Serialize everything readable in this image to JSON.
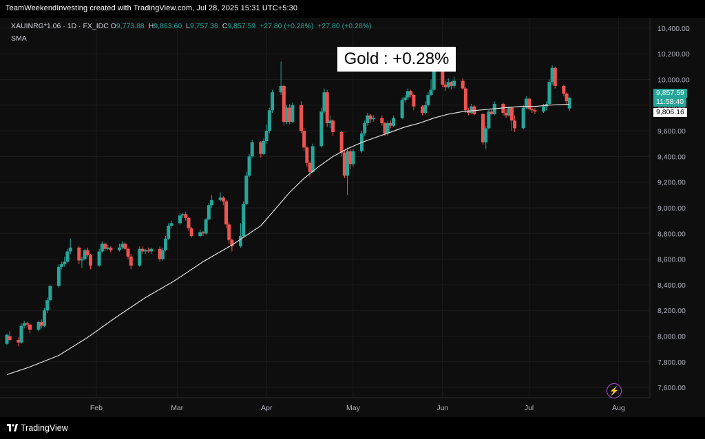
{
  "header": {
    "credit": "TeamWeekendInvesting created with TradingView.com, Jul 28, 2025 15:31 UTC+5:30"
  },
  "legend": {
    "symbol": "XAUINRG*1.06 · 1D · FX_IDC",
    "open_label": "O",
    "open": "9,773.88",
    "high_label": "H",
    "high": "9,863.60",
    "low_label": "L",
    "low": "9,757.38",
    "close_label": "C",
    "close": "9,857.59",
    "change": "+27.80 (+0.28%)",
    "change2": "+27.80 (+0.28%)",
    "indicator": "SMA"
  },
  "annotation": "Gold : +0.28%",
  "price_tags": {
    "last_price": "9,857.59",
    "countdown": "11:58:40",
    "sma_value": "9,806.16"
  },
  "colors": {
    "up": "#26a69a",
    "down": "#ef5350",
    "sma": "#e0e0e0",
    "background": "#0e0e0e",
    "grid": "#1c1c1c"
  },
  "icons": {
    "alert": "lightning-bolt-icon",
    "brand": "tradingview-logo-icon"
  },
  "footer": {
    "brand": "TradingView"
  },
  "chart_data": {
    "type": "candlestick",
    "x_tick_labels": [
      "Feb",
      "Mar",
      "Apr",
      "May",
      "Jun",
      "Jul",
      "Aug"
    ],
    "x_tick_days": [
      33,
      61,
      92,
      122,
      153,
      183,
      214
    ],
    "y_tick_labels": [
      "10,400.00",
      "10,200.00",
      "10,000.00",
      "9,800.00",
      "9,600.00",
      "9,400.00",
      "9,200.00",
      "9,000.00",
      "8,800.00",
      "8,600.00",
      "8,400.00",
      "8,200.00",
      "8,000.00",
      "7,800.00",
      "7,600.00"
    ],
    "ylim": [
      7520,
      10480
    ],
    "xlim_days": [
      2,
      222
    ],
    "grid": true,
    "series": [
      {
        "type": "candlestick",
        "points": [
          [
            2,
            7940,
            8020,
            7930,
            8010
          ],
          [
            3,
            8000,
            8040,
            7960,
            7970
          ],
          [
            6,
            7970,
            7990,
            7920,
            7950
          ],
          [
            7,
            7950,
            8100,
            7940,
            8080
          ],
          [
            8,
            8080,
            8120,
            8060,
            8100
          ],
          [
            9,
            8100,
            8110,
            8070,
            8090
          ],
          [
            10,
            8090,
            8100,
            8020,
            8050
          ],
          [
            13,
            8050,
            8120,
            8040,
            8110
          ],
          [
            14,
            8110,
            8130,
            8060,
            8080
          ],
          [
            15,
            8080,
            8220,
            8070,
            8200
          ],
          [
            16,
            8200,
            8300,
            8180,
            8280
          ],
          [
            17,
            8280,
            8400,
            8270,
            8390
          ],
          [
            20,
            8390,
            8560,
            8380,
            8540
          ],
          [
            21,
            8540,
            8580,
            8520,
            8560
          ],
          [
            22,
            8560,
            8620,
            8540,
            8580
          ],
          [
            23,
            8580,
            8680,
            8570,
            8660
          ],
          [
            24,
            8660,
            8760,
            8640,
            8690
          ],
          [
            27,
            8690,
            8700,
            8560,
            8590
          ],
          [
            28,
            8590,
            8620,
            8530,
            8600
          ],
          [
            29,
            8600,
            8680,
            8590,
            8670
          ],
          [
            30,
            8670,
            8690,
            8620,
            8630
          ],
          [
            31,
            8630,
            8640,
            8520,
            8550
          ],
          [
            34,
            8550,
            8680,
            8540,
            8660
          ],
          [
            35,
            8660,
            8740,
            8650,
            8720
          ],
          [
            36,
            8720,
            8730,
            8660,
            8680
          ],
          [
            37,
            8680,
            8710,
            8670,
            8690
          ],
          [
            38,
            8690,
            8700,
            8650,
            8670
          ],
          [
            41,
            8670,
            8720,
            8660,
            8690
          ],
          [
            42,
            8690,
            8740,
            8680,
            8720
          ],
          [
            43,
            8720,
            8730,
            8670,
            8680
          ],
          [
            44,
            8680,
            8690,
            8600,
            8620
          ],
          [
            45,
            8620,
            8640,
            8520,
            8550
          ],
          [
            48,
            8550,
            8700,
            8540,
            8680
          ],
          [
            49,
            8680,
            8700,
            8640,
            8660
          ],
          [
            50,
            8660,
            8680,
            8640,
            8670
          ],
          [
            51,
            8670,
            8690,
            8650,
            8660
          ],
          [
            52,
            8660,
            8690,
            8640,
            8680
          ],
          [
            55,
            8680,
            8700,
            8580,
            8600
          ],
          [
            56,
            8600,
            8690,
            8590,
            8670
          ],
          [
            57,
            8670,
            8780,
            8660,
            8760
          ],
          [
            58,
            8760,
            8880,
            8750,
            8860
          ],
          [
            59,
            8860,
            8900,
            8840,
            8880
          ],
          [
            62,
            8880,
            8960,
            8870,
            8940
          ],
          [
            63,
            8940,
            8960,
            8920,
            8950
          ],
          [
            64,
            8950,
            8970,
            8900,
            8920
          ],
          [
            65,
            8920,
            8930,
            8820,
            8840
          ],
          [
            66,
            8840,
            8850,
            8770,
            8780
          ],
          [
            69,
            8780,
            8830,
            8770,
            8810
          ],
          [
            70,
            8810,
            8820,
            8780,
            8800
          ],
          [
            71,
            8800,
            8920,
            8790,
            8910
          ],
          [
            72,
            8910,
            9040,
            8900,
            9020
          ],
          [
            73,
            9020,
            9100,
            9000,
            9060
          ],
          [
            76,
            9060,
            9120,
            9050,
            9080
          ],
          [
            77,
            9080,
            9090,
            9020,
            9050
          ],
          [
            78,
            9050,
            9060,
            8840,
            8870
          ],
          [
            79,
            8870,
            8890,
            8720,
            8750
          ],
          [
            80,
            8750,
            8760,
            8660,
            8700
          ],
          [
            83,
            8700,
            8880,
            8690,
            8780
          ],
          [
            84,
            8780,
            9050,
            8770,
            9030
          ],
          [
            85,
            9030,
            9280,
            9020,
            9250
          ],
          [
            86,
            9250,
            9420,
            9240,
            9400
          ],
          [
            87,
            9400,
            9530,
            9390,
            9510
          ],
          [
            90,
            9510,
            9520,
            9390,
            9420
          ],
          [
            91,
            9420,
            9540,
            9410,
            9520
          ],
          [
            92,
            9520,
            9650,
            9500,
            9600
          ],
          [
            93,
            9600,
            9780,
            9580,
            9760
          ],
          [
            94,
            9760,
            9920,
            9740,
            9900
          ],
          [
            97,
            9900,
            10140,
            9880,
            9950
          ],
          [
            98,
            9950,
            9960,
            9640,
            9670
          ],
          [
            99,
            9670,
            9800,
            9650,
            9780
          ],
          [
            100,
            9780,
            9810,
            9650,
            9670
          ],
          [
            101,
            9670,
            9820,
            9660,
            9800
          ],
          [
            104,
            9800,
            9830,
            9580,
            9600
          ],
          [
            105,
            9600,
            9620,
            9440,
            9470
          ],
          [
            106,
            9470,
            9480,
            9320,
            9350
          ],
          [
            107,
            9350,
            9360,
            9240,
            9280
          ],
          [
            108,
            9280,
            9500,
            9270,
            9480
          ],
          [
            111,
            9480,
            9780,
            9470,
            9750
          ],
          [
            112,
            9750,
            9930,
            9740,
            9900
          ],
          [
            113,
            9900,
            9920,
            9630,
            9660
          ],
          [
            114,
            9660,
            9720,
            9620,
            9680
          ],
          [
            115,
            9680,
            9690,
            9560,
            9590
          ],
          [
            118,
            9590,
            9600,
            9400,
            9430
          ],
          [
            119,
            9430,
            9450,
            9230,
            9250
          ],
          [
            120,
            9250,
            9470,
            9100,
            9440
          ],
          [
            121,
            9440,
            9460,
            9300,
            9340
          ],
          [
            122,
            9340,
            9460,
            9320,
            9440
          ],
          [
            125,
            9440,
            9600,
            9430,
            9580
          ],
          [
            126,
            9580,
            9680,
            9560,
            9660
          ],
          [
            127,
            9660,
            9740,
            9640,
            9720
          ],
          [
            128,
            9720,
            9730,
            9660,
            9690
          ],
          [
            129,
            9690,
            9720,
            9670,
            9700
          ],
          [
            132,
            9700,
            9720,
            9640,
            9660
          ],
          [
            133,
            9660,
            9670,
            9560,
            9580
          ],
          [
            134,
            9580,
            9680,
            9560,
            9660
          ],
          [
            135,
            9660,
            9680,
            9620,
            9640
          ],
          [
            136,
            9640,
            9720,
            9630,
            9700
          ],
          [
            139,
            9700,
            9860,
            9690,
            9840
          ],
          [
            140,
            9840,
            9880,
            9820,
            9860
          ],
          [
            141,
            9860,
            9930,
            9840,
            9910
          ],
          [
            142,
            9910,
            9920,
            9860,
            9880
          ],
          [
            143,
            9880,
            9890,
            9760,
            9790
          ],
          [
            146,
            9790,
            9800,
            9720,
            9740
          ],
          [
            147,
            9740,
            9830,
            9730,
            9800
          ],
          [
            148,
            9800,
            9900,
            9790,
            9880
          ],
          [
            149,
            9880,
            10000,
            9870,
            9920
          ],
          [
            150,
            9920,
            10140,
            9910,
            10120
          ],
          [
            153,
            10120,
            10130,
            9940,
            9960
          ],
          [
            154,
            9960,
            9990,
            9910,
            9940
          ],
          [
            155,
            9940,
            10010,
            9930,
            9980
          ],
          [
            156,
            9980,
            9990,
            9920,
            9950
          ],
          [
            157,
            9950,
            10020,
            9930,
            9990
          ],
          [
            160,
            9990,
            10010,
            9920,
            9930
          ],
          [
            161,
            9930,
            9940,
            9740,
            9760
          ],
          [
            162,
            9760,
            9780,
            9720,
            9740
          ],
          [
            163,
            9740,
            9810,
            9730,
            9790
          ],
          [
            164,
            9790,
            9800,
            9720,
            9730
          ],
          [
            167,
            9730,
            9740,
            9490,
            9510
          ],
          [
            168,
            9510,
            9640,
            9460,
            9620
          ],
          [
            169,
            9620,
            9760,
            9610,
            9750
          ],
          [
            170,
            9750,
            9770,
            9720,
            9730
          ],
          [
            171,
            9730,
            9830,
            9720,
            9810
          ],
          [
            174,
            9810,
            9820,
            9720,
            9740
          ],
          [
            175,
            9740,
            9770,
            9700,
            9720
          ],
          [
            176,
            9720,
            9790,
            9710,
            9780
          ],
          [
            177,
            9780,
            9790,
            9600,
            9680
          ],
          [
            178,
            9680,
            9720,
            9590,
            9620
          ],
          [
            181,
            9620,
            9800,
            9610,
            9780
          ],
          [
            182,
            9780,
            9870,
            9770,
            9850
          ],
          [
            183,
            9850,
            9860,
            9760,
            9770
          ],
          [
            184,
            9770,
            9790,
            9740,
            9760
          ],
          [
            185,
            9760,
            9780,
            9730,
            9750
          ],
          [
            188,
            9750,
            9810,
            9740,
            9790
          ],
          [
            189,
            9790,
            9830,
            9760,
            9810
          ],
          [
            190,
            9810,
            10000,
            9800,
            9980
          ],
          [
            191,
            9980,
            10110,
            9960,
            10090
          ],
          [
            192,
            10090,
            10100,
            9930,
            9950
          ],
          [
            195,
            9950,
            9960,
            9870,
            9890
          ],
          [
            196,
            9890,
            9900,
            9800,
            9830
          ],
          [
            197,
            9774,
            9864,
            9757,
            9858
          ]
        ]
      },
      {
        "name": "SMA",
        "type": "line",
        "x": [
          2,
          10,
          20,
          30,
          40,
          50,
          60,
          70,
          80,
          90,
          95,
          100,
          105,
          110,
          115,
          120,
          125,
          130,
          135,
          140,
          145,
          150,
          155,
          160,
          165,
          170,
          175,
          180,
          185,
          190,
          195,
          197
        ],
        "y": [
          7700,
          7760,
          7850,
          7990,
          8150,
          8300,
          8430,
          8580,
          8710,
          8860,
          8990,
          9120,
          9230,
          9320,
          9400,
          9460,
          9510,
          9550,
          9590,
          9630,
          9660,
          9700,
          9730,
          9750,
          9760,
          9770,
          9780,
          9790,
          9790,
          9800,
          9806,
          9806
        ]
      }
    ]
  }
}
